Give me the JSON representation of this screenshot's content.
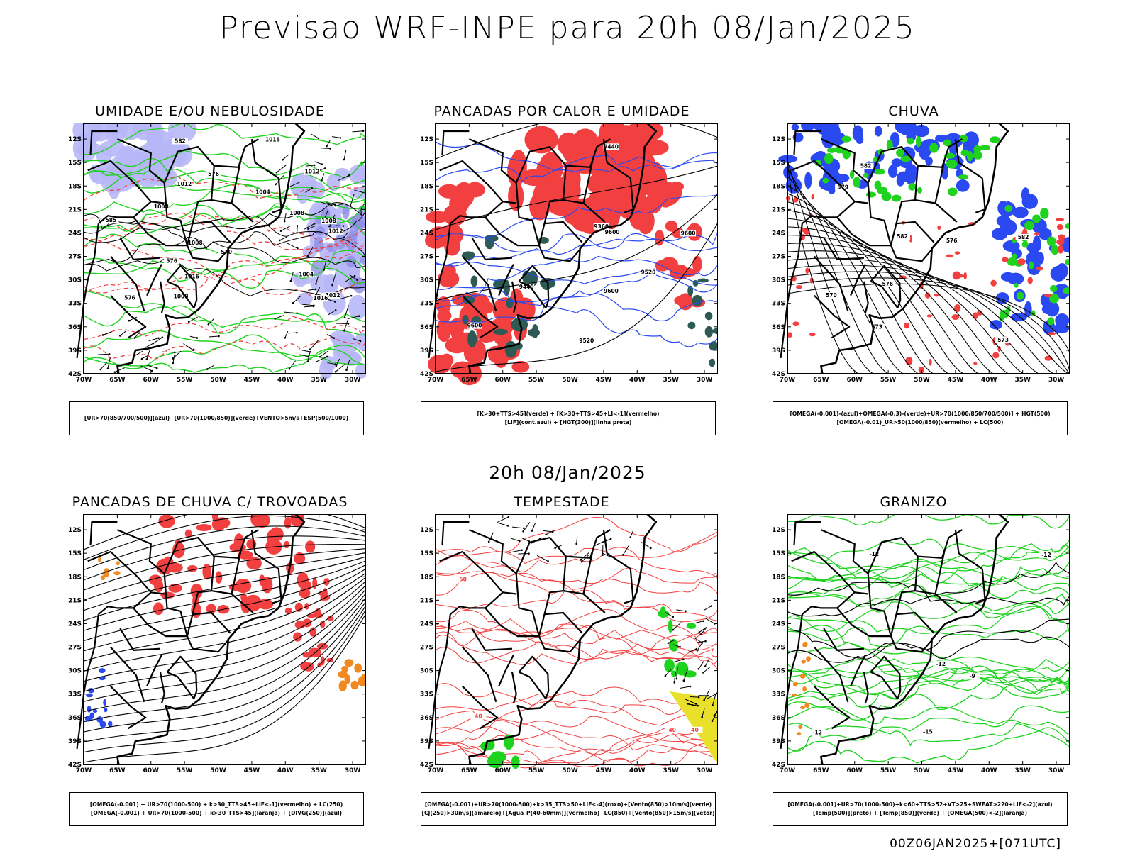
{
  "main_title": "Previsao WRF-INPE  para 20h 08/Jan/2025",
  "mid_title": "20h 08/Jan/2025",
  "footer": "00Z06JAN2025+[071UTC]",
  "colors": {
    "blue": "#2a49f0",
    "lightblue": "#b7b7f7",
    "green": "#1ed21e",
    "red": "#f24040",
    "orange": "#f08a20",
    "yellow": "#e8e02a",
    "darkgreen": "#2d5a55",
    "purple": "#7a3dd0"
  },
  "chart_data": [
    {
      "type": "map",
      "title": "UMIDADE E/OU NEBULOSIDADE",
      "legend": [
        "[UR>70(850/700/500)](azul)+[UR>70(1000/850)](verde)+VENTO>5m/s+ESP(500/1000)"
      ],
      "xticks": [
        "70W",
        "65W",
        "60W",
        "55W",
        "50W",
        "45W",
        "40W",
        "35W",
        "30W"
      ],
      "yticks": [
        "12S",
        "15S",
        "18S",
        "21S",
        "24S",
        "27S",
        "30S",
        "33S",
        "36S",
        "39S",
        "42S"
      ],
      "xlim": [
        -70,
        -28
      ],
      "ylim": [
        -42,
        -10
      ],
      "contour_labels": [
        "1012",
        "1008",
        "1004",
        "1012",
        "1008",
        "1012",
        "1016",
        "1015",
        "1016",
        "1012",
        "1008",
        "1004",
        "1008",
        "1008",
        "576",
        "570",
        "576",
        "585",
        "582",
        "576"
      ]
    },
    {
      "type": "map",
      "title": "PANCADAS POR CALOR E UMIDADE",
      "legend": [
        "[K>30+TTS>45](verde) + [K>30+TTS>45+LI<-1](vermelho)",
        "[LIF](cont.azul) + [HGT(300)](linha preta)"
      ],
      "xticks": [
        "70W",
        "65W",
        "60W",
        "55W",
        "50W",
        "45W",
        "40W",
        "35W",
        "30W"
      ],
      "yticks": [
        "12S",
        "15S",
        "18S",
        "21S",
        "24S",
        "27S",
        "30S",
        "33S",
        "36S",
        "39S",
        "42S"
      ],
      "xlim": [
        -70,
        -28
      ],
      "ylim": [
        -42,
        -10
      ],
      "contour_labels": [
        "9600",
        "9600",
        "9520",
        "9600",
        "9600",
        "9520",
        "9440",
        "9440",
        "9360"
      ]
    },
    {
      "type": "map",
      "title": "CHUVA",
      "legend": [
        "[OMEGA(-0.001)-(azul)+OMEGA(-0.3)-(verde)+UR>70(1000/850/700/500)] + HGT(500)",
        "[OMEGA(-0.01)_UR>50(1000/850)(vermelho) + LC(500)"
      ],
      "xticks": [
        "70W",
        "65W",
        "60W",
        "55W",
        "50W",
        "45W",
        "40W",
        "35W",
        "30W"
      ],
      "yticks": [
        "12S",
        "15S",
        "18S",
        "21S",
        "24S",
        "27S",
        "30S",
        "33S",
        "36S",
        "39S",
        "42S"
      ],
      "xlim": [
        -70,
        -28
      ],
      "ylim": [
        -42,
        -10
      ],
      "contour_labels": [
        "582",
        "582",
        "582",
        "573",
        "570",
        "579",
        "576",
        "573",
        "576"
      ]
    },
    {
      "type": "map",
      "title": "PANCADAS DE CHUVA C/ TROVOADAS",
      "legend": [
        "[OMEGA(-0.001) + UR>70(1000-500) + k>30_TTS>45+LIF<-1](vermelho) + LC(250)",
        "[OMEGA(-0.001) + UR>70(1000-500) + k>30_TTS>45](laranja) + [DIVG(250)](azul)"
      ],
      "xticks": [
        "70W",
        "65W",
        "60W",
        "55W",
        "50W",
        "45W",
        "40W",
        "35W",
        "30W"
      ],
      "yticks": [
        "12S",
        "15S",
        "18S",
        "21S",
        "24S",
        "27S",
        "30S",
        "33S",
        "36S",
        "39S",
        "42S"
      ],
      "xlim": [
        -70,
        -28
      ],
      "ylim": [
        -42,
        -10
      ],
      "contour_labels": []
    },
    {
      "type": "map",
      "title": "TEMPESTADE",
      "legend": [
        "[OMEGA(-0.001)+UR>70(1000-500)+k>35_TTS>50+LIF<-4](roxo)+[Vento(850)>10m/s](verde)",
        "[CJ(250)>30m/s](amarelo)+[Agua_P(40-60mm)](vermelho)+LC(850)+[Vento(850)>15m/s](vetor)"
      ],
      "xticks": [
        "70W",
        "65W",
        "60W",
        "55W",
        "50W",
        "45W",
        "40W",
        "35W",
        "30W"
      ],
      "yticks": [
        "12S",
        "15S",
        "18S",
        "21S",
        "24S",
        "27S",
        "30S",
        "33S",
        "36S",
        "39S",
        "42S"
      ],
      "xlim": [
        -70,
        -28
      ],
      "ylim": [
        -42,
        -10
      ],
      "contour_labels": [
        "40",
        "40",
        "50",
        "40"
      ]
    },
    {
      "type": "map",
      "title": "GRANIZO",
      "legend": [
        "[OMEGA(-0.001)+UR>70(1000-500)+k<60+TTS>52+VT>25+SWEAT>220+LIF<-2](azul)",
        "[Temp(500)](preto) + [Temp(850)](verde) + [OMEGA(500)<-2](laranja)"
      ],
      "xticks": [
        "70W",
        "65W",
        "60W",
        "55W",
        "50W",
        "45W",
        "40W",
        "35W",
        "30W"
      ],
      "yticks": [
        "12S",
        "15S",
        "18S",
        "21S",
        "24S",
        "27S",
        "30S",
        "33S",
        "36S",
        "39S",
        "42S"
      ],
      "xlim": [
        -70,
        -28
      ],
      "ylim": [
        -42,
        -10
      ],
      "contour_labels": [
        "-12",
        "-12",
        "-12",
        "-15",
        "-9",
        "-12"
      ]
    }
  ]
}
